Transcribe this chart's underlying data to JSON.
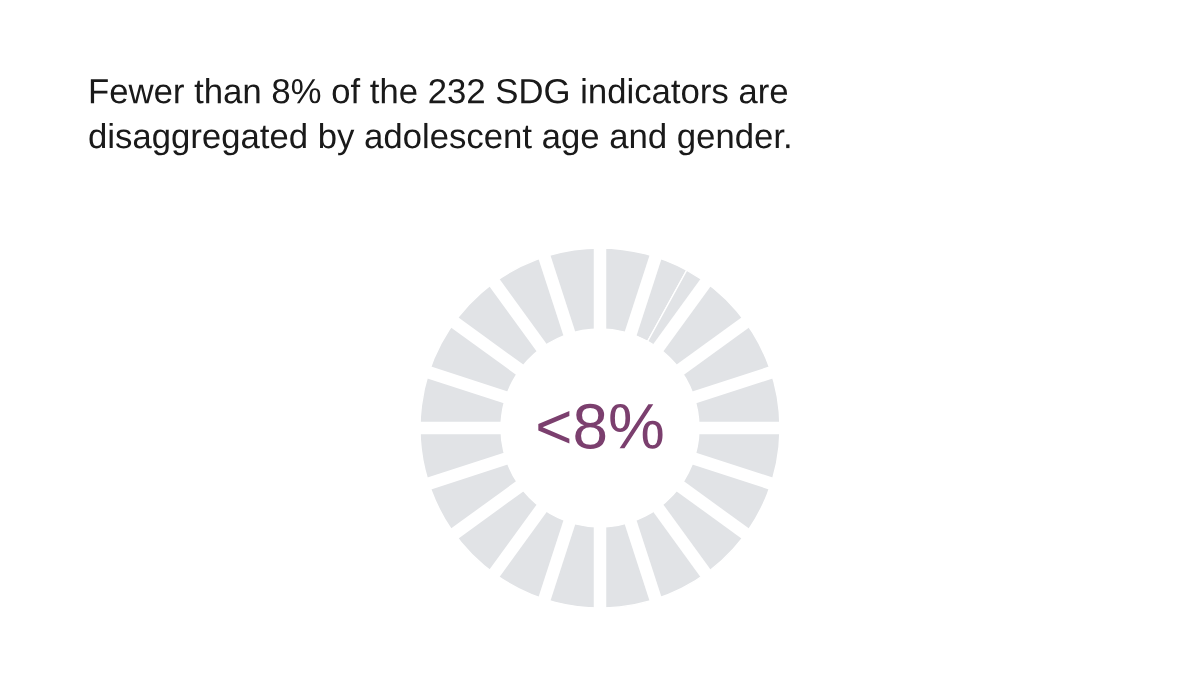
{
  "chart_data": {
    "type": "donut",
    "title": "Fewer than 8% of the 232 SDG indicators are\ndisaggregated by adolescent age and gender.",
    "categories": [
      null,
      null
    ],
    "values": [
      8,
      92
    ],
    "colors": [
      "#e1e3e6",
      "#e1e3e6"
    ],
    "annotations": [
      "<8%"
    ]
  }
}
